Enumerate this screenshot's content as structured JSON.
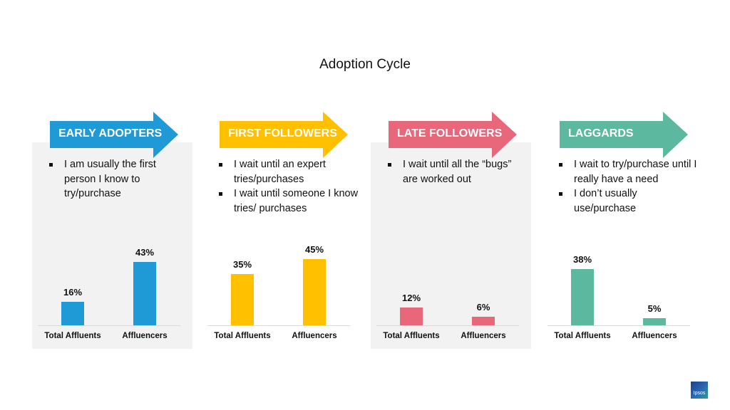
{
  "title": "Adoption Cycle",
  "logo_text": "Ipsos",
  "chart_data": [
    {
      "type": "bar",
      "title": "EARLY ADOPTERS",
      "color": "#1f9ad6",
      "shaded": true,
      "bullets": [
        "I am usually the first person I know to try/purchase"
      ],
      "categories": [
        "Total Affluents",
        "Affluencers"
      ],
      "values": [
        16,
        43
      ],
      "labels": [
        "16%",
        "43%"
      ],
      "ylim": [
        0,
        50
      ]
    },
    {
      "type": "bar",
      "title": "FIRST FOLLOWERS",
      "color": "#ffc000",
      "shaded": false,
      "bullets": [
        "I wait until an expert tries/purchases",
        "I wait until someone I know tries/ purchases"
      ],
      "categories": [
        "Total Affluents",
        "Affluencers"
      ],
      "values": [
        35,
        45
      ],
      "labels": [
        "35%",
        "45%"
      ],
      "ylim": [
        0,
        50
      ]
    },
    {
      "type": "bar",
      "title": "LATE FOLLOWERS",
      "color": "#e8677a",
      "shaded": true,
      "bullets": [
        "I wait until all the “bugs” are worked out"
      ],
      "categories": [
        "Total Affluents",
        "Affluencers"
      ],
      "values": [
        12,
        6
      ],
      "labels": [
        "12%",
        "6%"
      ],
      "ylim": [
        0,
        50
      ]
    },
    {
      "type": "bar",
      "title": "LAGGARDS",
      "color": "#5cb89e",
      "shaded": false,
      "bullets": [
        "I wait to try/purchase until I really have a need",
        "I don’t usually use/purchase"
      ],
      "categories": [
        "Total Affluents",
        "Affluencers"
      ],
      "values": [
        38,
        5
      ],
      "labels": [
        "38%",
        "5%"
      ],
      "ylim": [
        0,
        50
      ]
    }
  ]
}
